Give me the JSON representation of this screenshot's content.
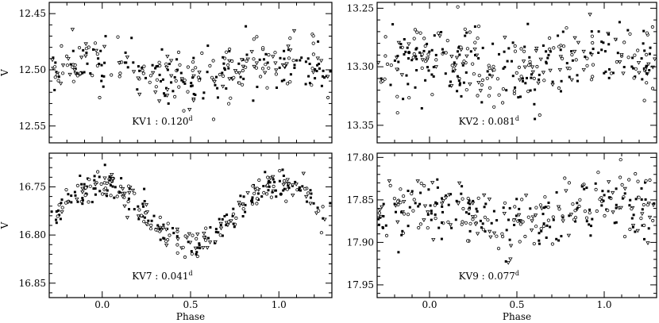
{
  "chart_data": [
    {
      "type": "scatter",
      "panel": "top-left",
      "label": "KV1 : 0.120",
      "label_sup": "d",
      "ylabel": "V",
      "xlabel": "",
      "xlim": [
        -0.3,
        1.3
      ],
      "ylim": [
        12.565,
        12.44
      ],
      "y_inverted": true,
      "xticks": [
        "0.0",
        "0.5",
        "1.0"
      ],
      "xtick_values": [
        0.0,
        0.5,
        1.0
      ],
      "show_xtick_labels": false,
      "yticks": [
        "12.45",
        "12.50",
        "12.55"
      ],
      "ytick_values": [
        12.45,
        12.5,
        12.55
      ],
      "lightcurve": {
        "mean": 12.5,
        "amplitude": 0.01,
        "peak_phase": 0.0,
        "scatter": 0.012,
        "count": 300
      }
    },
    {
      "type": "scatter",
      "panel": "top-right",
      "label": "KV2 : 0.081",
      "label_sup": "d",
      "ylabel": "",
      "xlabel": "",
      "xlim": [
        -0.3,
        1.3
      ],
      "ylim": [
        13.365,
        13.245
      ],
      "y_inverted": true,
      "xticks": [
        "0.0",
        "0.5",
        "1.0"
      ],
      "xtick_values": [
        0.0,
        0.5,
        1.0
      ],
      "show_xtick_labels": false,
      "yticks": [
        "13.25",
        "13.30",
        "13.35"
      ],
      "ytick_values": [
        13.25,
        13.3,
        13.35
      ],
      "lightcurve": {
        "mean": 13.298,
        "amplitude": 0.008,
        "peak_phase": 0.0,
        "scatter": 0.015,
        "count": 340
      }
    },
    {
      "type": "scatter",
      "panel": "bottom-left",
      "label": "KV7 : 0.041",
      "label_sup": "d",
      "ylabel": "V",
      "xlabel": "Phase",
      "xlim": [
        -0.3,
        1.3
      ],
      "ylim": [
        16.865,
        16.715
      ],
      "y_inverted": true,
      "xticks": [
        "0.0",
        "0.5",
        "1.0"
      ],
      "xtick_values": [
        0.0,
        0.5,
        1.0
      ],
      "show_xtick_labels": true,
      "yticks": [
        "16.75",
        "16.80",
        "16.85"
      ],
      "ytick_values": [
        16.75,
        16.8,
        16.85
      ],
      "lightcurve": {
        "mean": 16.778,
        "amplitude": 0.032,
        "peak_phase": 0.0,
        "scatter": 0.008,
        "count": 320
      }
    },
    {
      "type": "scatter",
      "panel": "bottom-right",
      "label": "KV9 : 0.077",
      "label_sup": "d",
      "ylabel": "",
      "xlabel": "Phase",
      "xlim": [
        -0.3,
        1.3
      ],
      "ylim": [
        17.965,
        17.795
      ],
      "y_inverted": true,
      "xticks": [
        "0.0",
        "0.5",
        "1.0"
      ],
      "xtick_values": [
        0.0,
        0.5,
        1.0
      ],
      "show_xtick_labels": true,
      "yticks": [
        "17.80",
        "17.85",
        "17.90",
        "17.95"
      ],
      "ytick_values": [
        17.8,
        17.85,
        17.9,
        17.95
      ],
      "lightcurve": {
        "mean": 17.867,
        "amplitude": 0.012,
        "peak_phase": 0.0,
        "scatter": 0.018,
        "count": 320
      }
    }
  ]
}
